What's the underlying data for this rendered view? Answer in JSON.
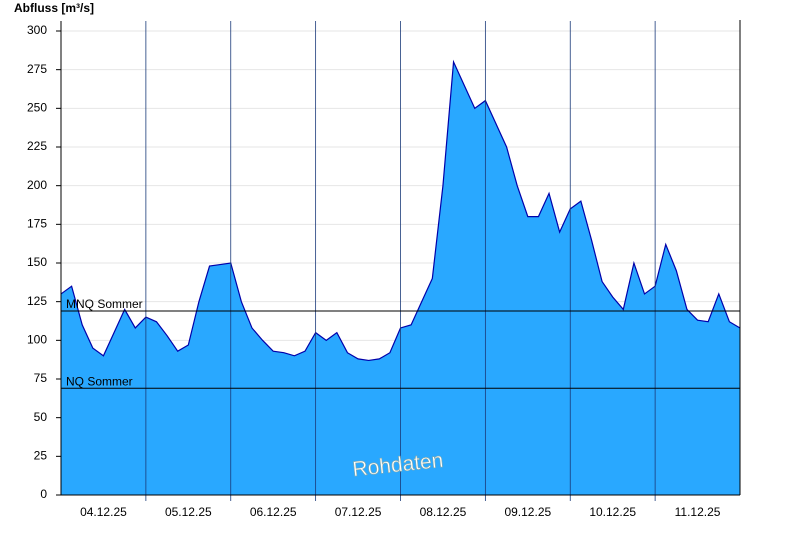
{
  "chart_data": {
    "type": "area",
    "y_label": "Abfluss [m³/s]",
    "watermark": "Rohdaten",
    "categories": [
      null,
      null,
      null,
      null,
      "04.12.25",
      null,
      null,
      null,
      null,
      null,
      null,
      null,
      "05.12.25",
      null,
      null,
      null,
      null,
      null,
      null,
      null,
      "06.12.25",
      null,
      null,
      null,
      null,
      null,
      null,
      null,
      "07.12.25",
      null,
      null,
      null,
      null,
      null,
      null,
      null,
      "08.12.25",
      null,
      null,
      null,
      null,
      null,
      null,
      null,
      "09.12.25",
      null,
      null,
      null,
      null,
      null,
      null,
      null,
      "10.12.25",
      null,
      null,
      null,
      null,
      null,
      null,
      null,
      "11.12.25",
      null,
      null,
      null,
      null
    ],
    "values": [
      130,
      135,
      110,
      95,
      90,
      105,
      120,
      108,
      115,
      112,
      103,
      93,
      97,
      125,
      148,
      149,
      150,
      125,
      108,
      100,
      93,
      92,
      90,
      93,
      105,
      100,
      105,
      92,
      88,
      87,
      88,
      92,
      108,
      110,
      125,
      140,
      200,
      280,
      265,
      250,
      255,
      240,
      225,
      200,
      180,
      180,
      195,
      170,
      185,
      190,
      165,
      138,
      128,
      120,
      150,
      130,
      135,
      162,
      145,
      120,
      113,
      112,
      130,
      112,
      108
    ],
    "color": "#29a8ff",
    "line_color": "#0000aa",
    "ylim": [
      0,
      300
    ],
    "yticks": [
      0,
      25,
      50,
      75,
      100,
      125,
      150,
      175,
      200,
      225,
      250,
      275,
      300
    ],
    "grid": true,
    "reference_lines": [
      {
        "label": "MNQ Sommer",
        "value": 119
      },
      {
        "label": "NQ Sommer",
        "value": 69
      }
    ]
  }
}
